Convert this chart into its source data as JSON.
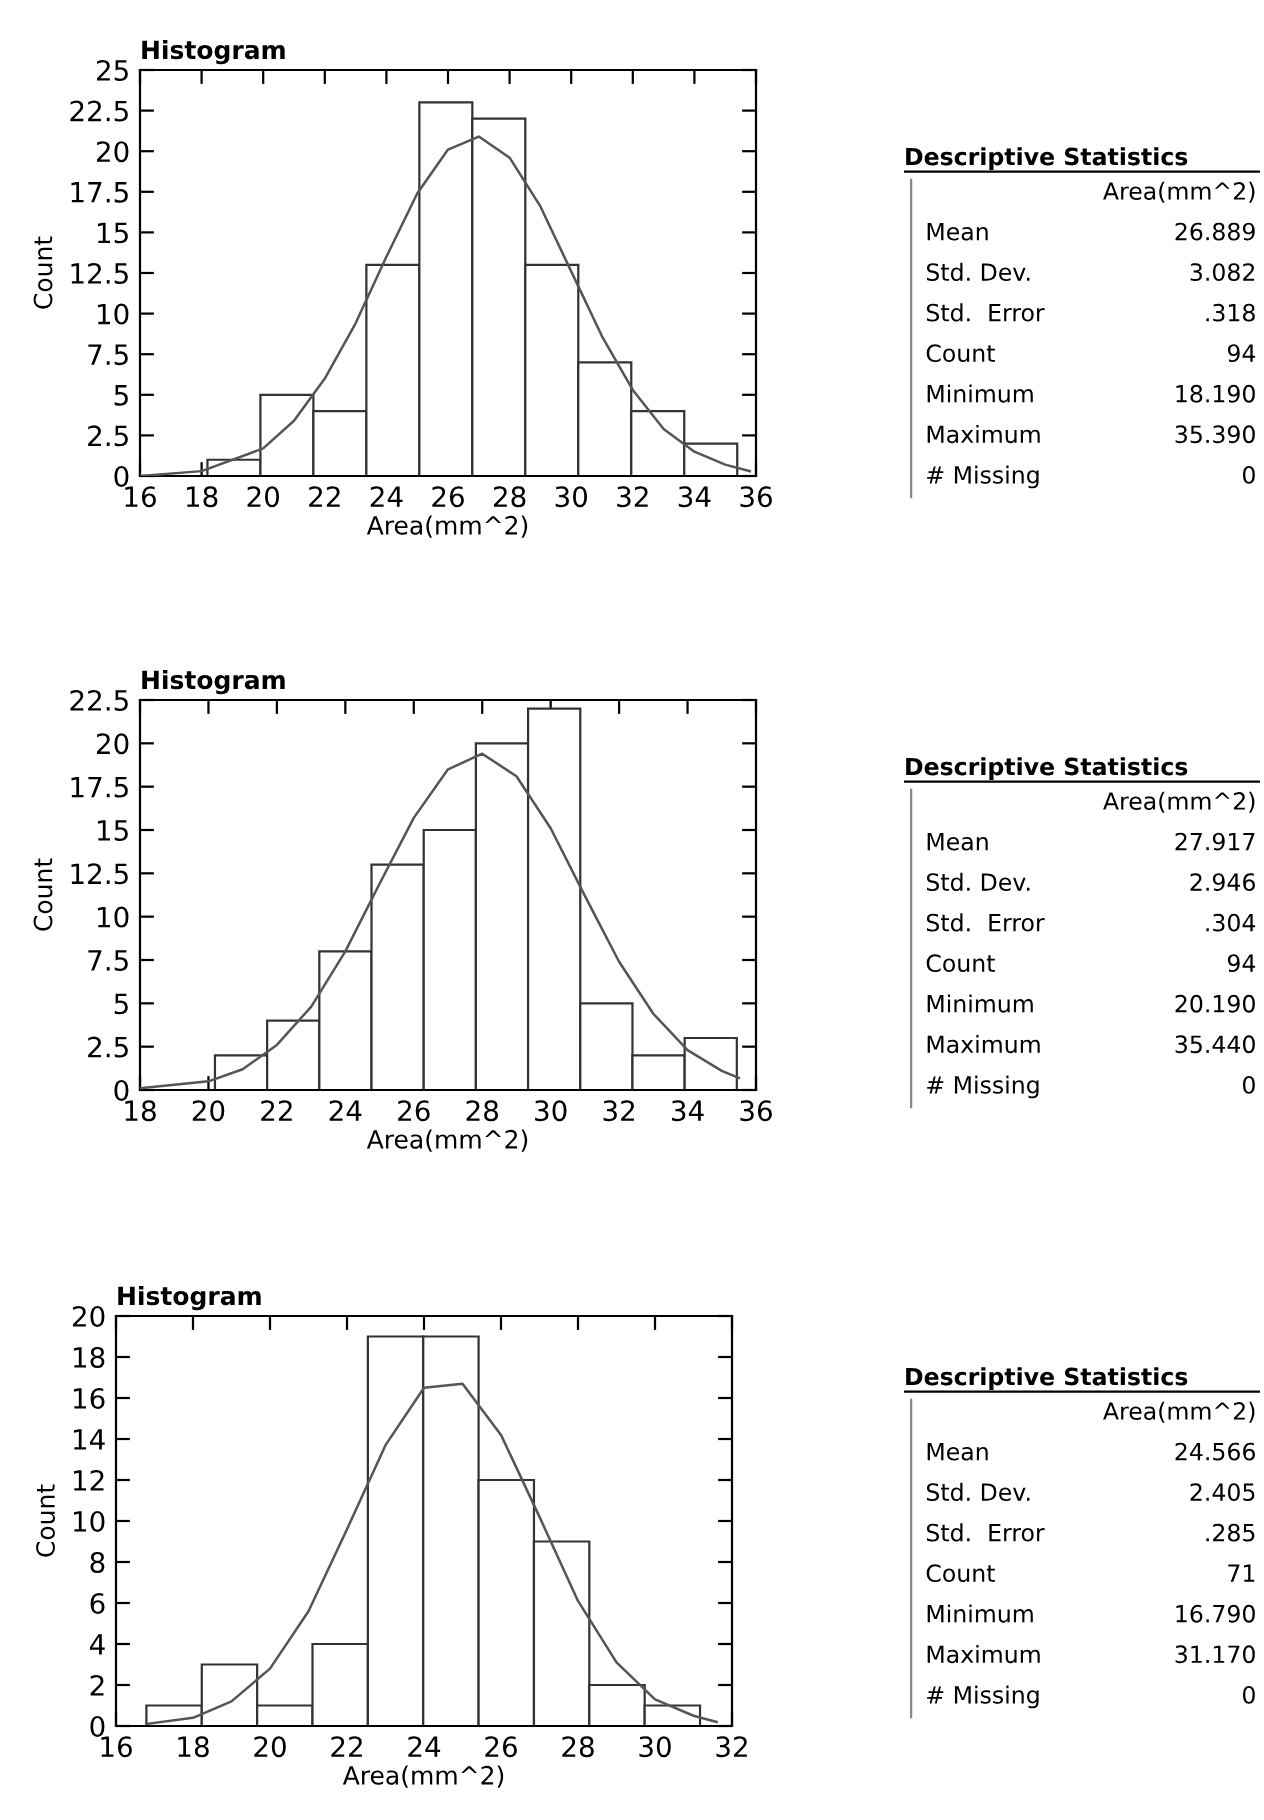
{
  "chart_data": [
    {
      "type": "histogram",
      "title": "Histogram",
      "xlabel": "Area(mm^2)",
      "ylabel": "Count",
      "color": "#ffffff",
      "bins": [
        18.19,
        19.91,
        21.63,
        23.35,
        25.07,
        26.79,
        28.51,
        30.23,
        31.95,
        33.67,
        35.39
      ],
      "values": [
        1,
        5,
        4,
        13,
        23,
        22,
        13,
        7,
        4,
        2
      ],
      "series": [
        {
          "type": "line",
          "color": "#555555",
          "x": [
            16,
            18,
            20,
            21,
            22,
            23,
            24,
            25,
            26,
            27,
            28,
            29,
            30,
            31,
            32,
            33,
            34,
            35,
            35.8
          ],
          "values": [
            0.0,
            0.3,
            1.7,
            3.4,
            6.0,
            9.4,
            13.5,
            17.4,
            20.1,
            20.9,
            19.6,
            16.6,
            12.6,
            8.6,
            5.3,
            2.9,
            1.5,
            0.7,
            0.3
          ]
        }
      ],
      "xlim": [
        16,
        36
      ],
      "xticks": [
        16,
        18,
        20,
        22,
        24,
        26,
        28,
        30,
        32,
        34,
        36
      ],
      "ylim": [
        0,
        25
      ],
      "yticks": [
        0,
        2.5,
        5,
        7.5,
        10,
        12.5,
        15,
        17.5,
        20,
        22.5,
        25
      ]
    },
    {
      "type": "other",
      "title": "Descriptive Statistics",
      "xlabel": "Area(mm^2)",
      "categories": [
        "Mean",
        "Std. Dev.",
        "Std.  Error",
        "Count",
        "Minimum",
        "Maximum",
        "# Missing"
      ],
      "values": [
        26.889,
        3.082,
        0.318,
        94,
        18.19,
        35.39,
        0
      ],
      "value_labels": [
        "26.889",
        "3.082",
        ".318",
        "94",
        "18.190",
        "35.390",
        "0"
      ]
    },
    {
      "type": "histogram",
      "title": "Histogram",
      "xlabel": "Area(mm^2)",
      "ylabel": "Count",
      "color": "#ffffff",
      "bins": [
        20.19,
        21.715,
        23.24,
        24.765,
        26.29,
        27.815,
        29.34,
        30.865,
        32.39,
        33.915,
        35.44
      ],
      "values": [
        2,
        4,
        8,
        13,
        15,
        20,
        22,
        5,
        2,
        3
      ],
      "series": [
        {
          "type": "line",
          "color": "#555555",
          "x": [
            18,
            20,
            21,
            22,
            23,
            24,
            25,
            26,
            27,
            28,
            29,
            30,
            31,
            32,
            33,
            34,
            35,
            35.5
          ],
          "values": [
            0.1,
            0.5,
            1.2,
            2.6,
            4.8,
            8.0,
            11.9,
            15.7,
            18.5,
            19.4,
            18.1,
            15.1,
            11.2,
            7.4,
            4.4,
            2.3,
            1.1,
            0.7
          ]
        }
      ],
      "xlim": [
        18,
        36
      ],
      "xticks": [
        18,
        20,
        22,
        24,
        26,
        28,
        30,
        32,
        34,
        36
      ],
      "ylim": [
        0,
        22.5
      ],
      "yticks": [
        0,
        2.5,
        5,
        7.5,
        10,
        12.5,
        15,
        17.5,
        20,
        22.5
      ]
    },
    {
      "type": "other",
      "title": "Descriptive Statistics",
      "xlabel": "Area(mm^2)",
      "categories": [
        "Mean",
        "Std. Dev.",
        "Std.  Error",
        "Count",
        "Minimum",
        "Maximum",
        "# Missing"
      ],
      "values": [
        27.917,
        2.946,
        0.304,
        94,
        20.19,
        35.44,
        0
      ],
      "value_labels": [
        "27.917",
        "2.946",
        ".304",
        "94",
        "20.190",
        "35.440",
        "0"
      ]
    },
    {
      "type": "histogram",
      "title": "Histogram",
      "xlabel": "Area(mm^2)",
      "ylabel": "Count",
      "color": "#ffffff",
      "bins": [
        16.79,
        18.228,
        19.666,
        21.104,
        22.542,
        23.98,
        25.418,
        26.856,
        28.294,
        29.732,
        31.17
      ],
      "values": [
        1,
        3,
        1,
        4,
        19,
        19,
        12,
        9,
        2,
        1
      ],
      "series": [
        {
          "type": "line",
          "color": "#555555",
          "x": [
            16.8,
            18,
            19,
            20,
            21,
            22,
            23,
            24,
            25,
            26,
            27,
            28,
            29,
            30,
            31,
            31.6
          ],
          "values": [
            0.1,
            0.4,
            1.2,
            2.8,
            5.6,
            9.6,
            13.7,
            16.5,
            16.7,
            14.2,
            10.2,
            6.1,
            3.1,
            1.3,
            0.5,
            0.2
          ]
        }
      ],
      "xlim": [
        16,
        32
      ],
      "xticks": [
        16,
        18,
        20,
        22,
        24,
        26,
        28,
        30,
        32
      ],
      "ylim": [
        0,
        20
      ],
      "yticks": [
        0,
        2,
        4,
        6,
        8,
        10,
        12,
        14,
        16,
        18,
        20
      ]
    },
    {
      "type": "other",
      "title": "Descriptive Statistics",
      "xlabel": "Area(mm^2)",
      "categories": [
        "Mean",
        "Std. Dev.",
        "Std.  Error",
        "Count",
        "Minimum",
        "Maximum",
        "# Missing"
      ],
      "values": [
        24.566,
        2.405,
        0.285,
        71,
        16.79,
        31.17,
        0
      ],
      "value_labels": [
        "24.566",
        "2.405",
        ".285",
        "71",
        "16.790",
        "31.170",
        "0"
      ]
    }
  ]
}
